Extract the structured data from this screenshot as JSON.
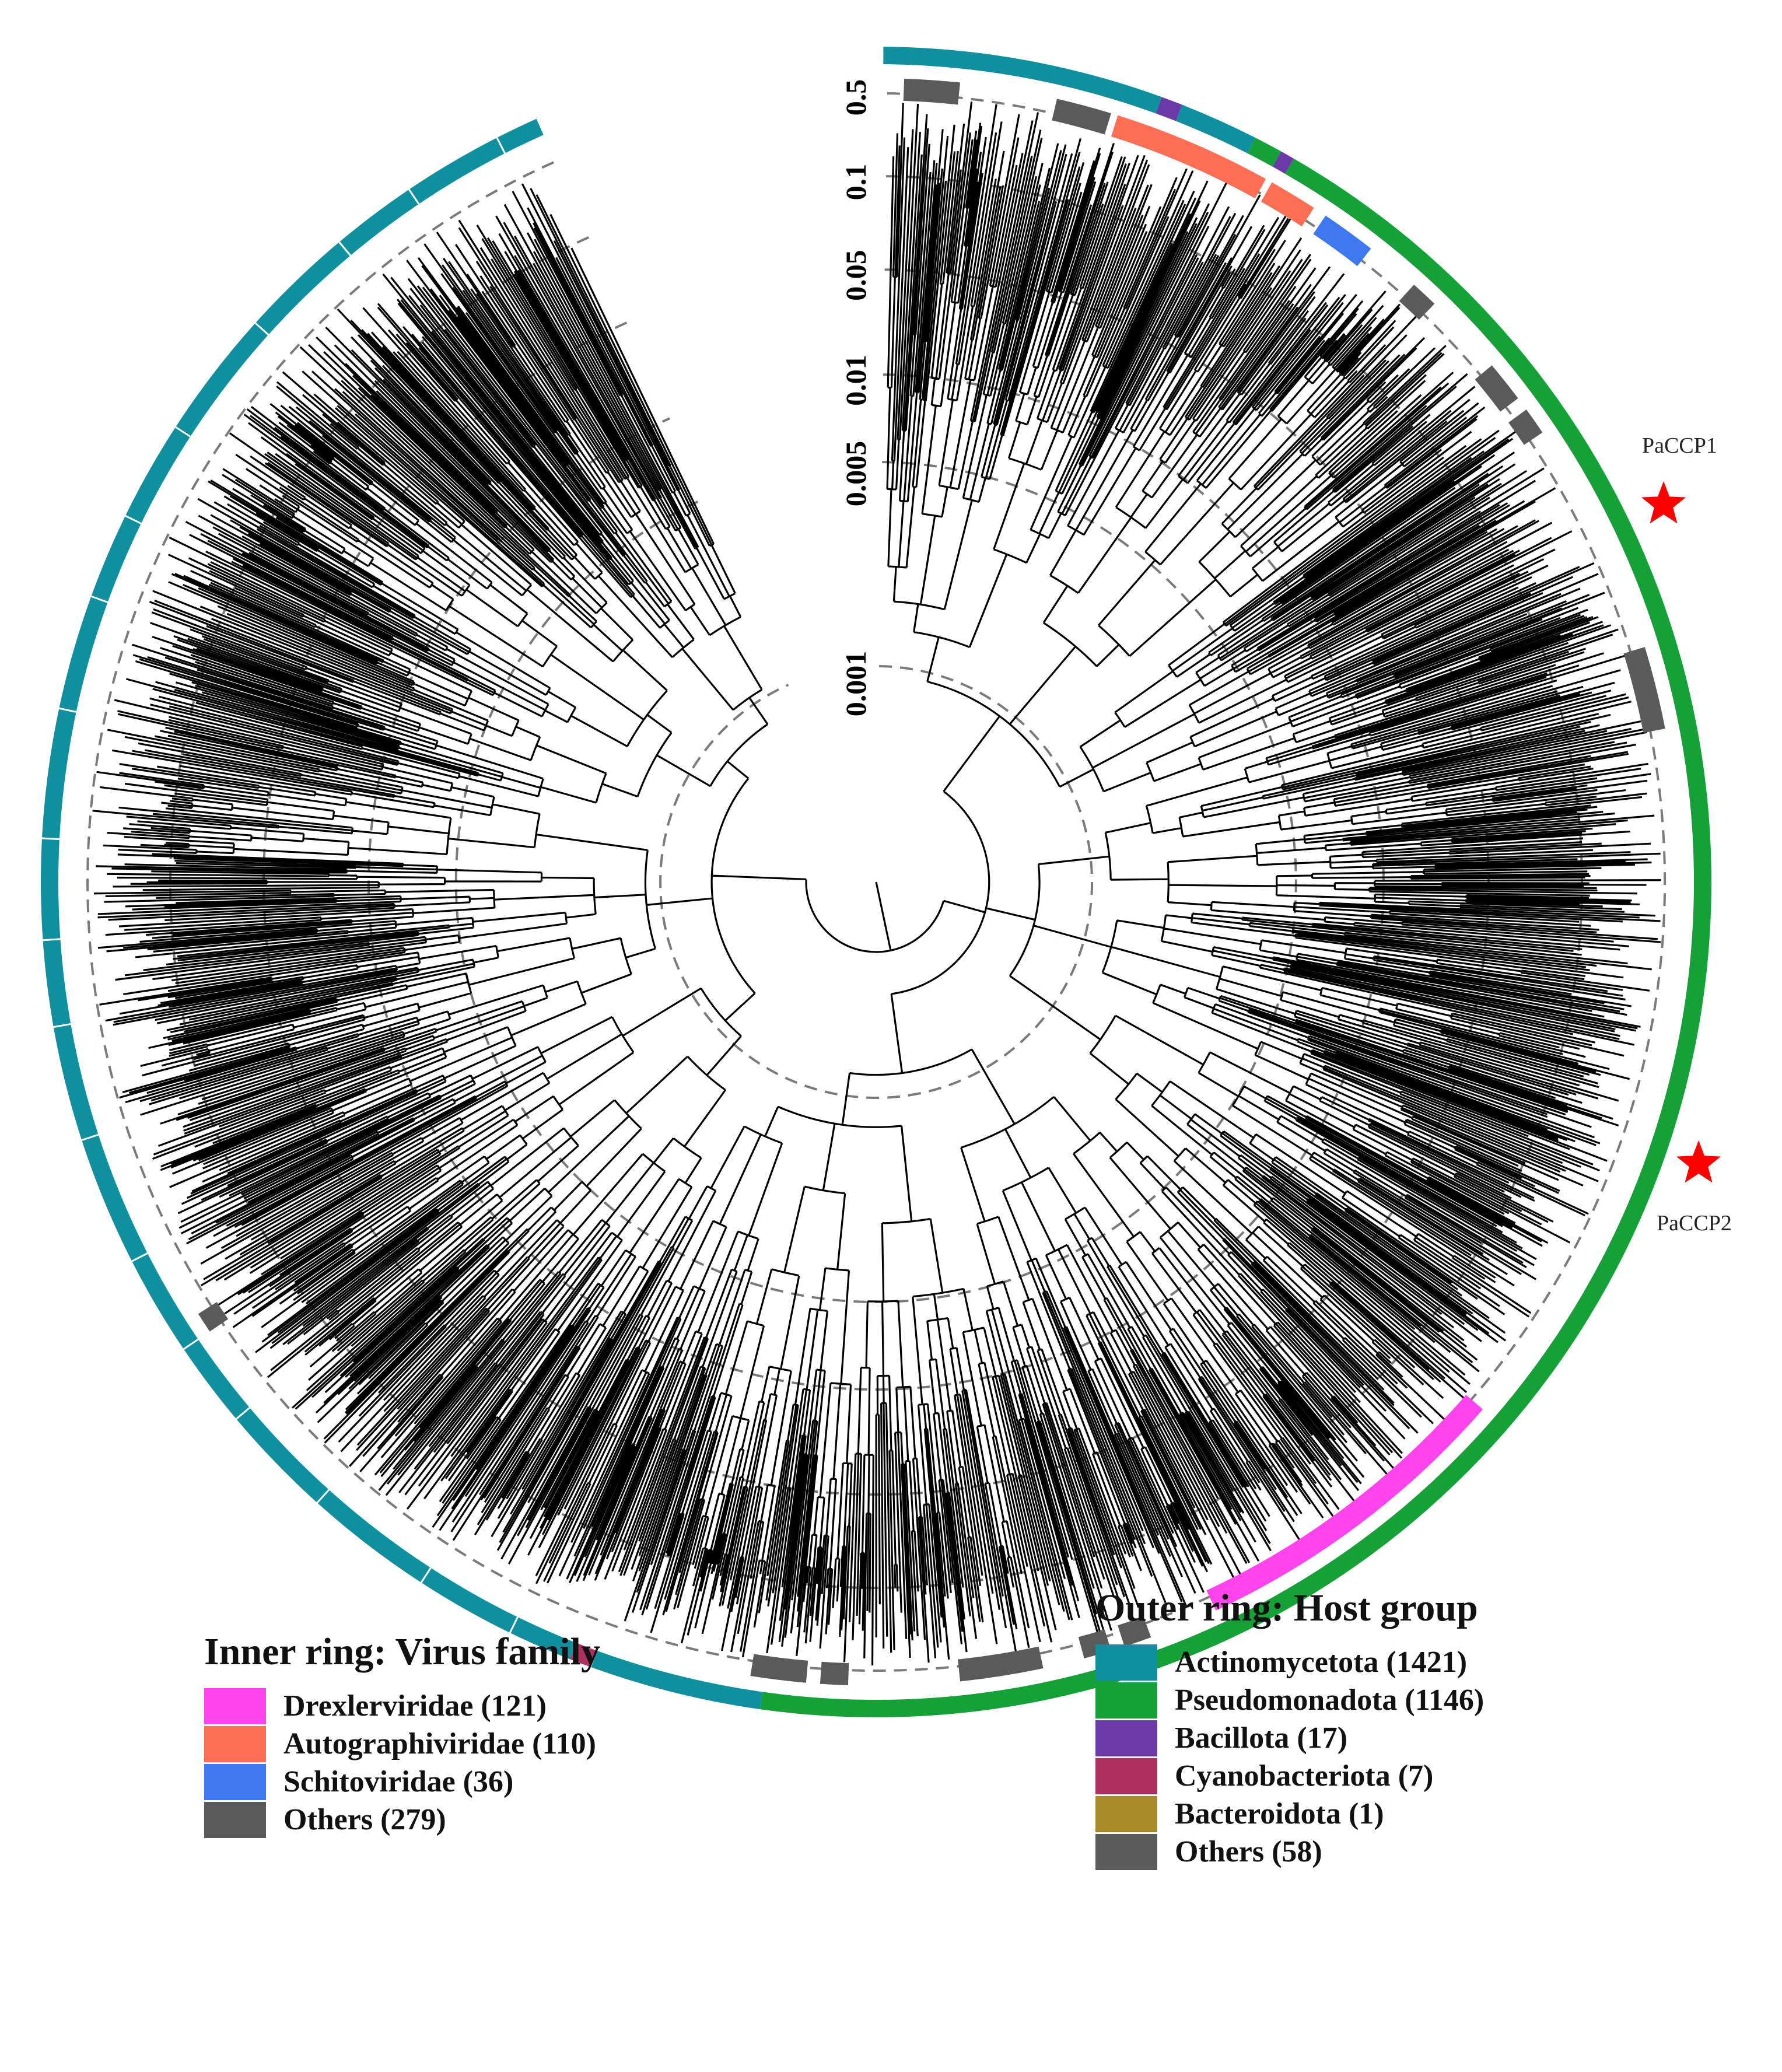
{
  "scale": {
    "ticks": [
      "0.5",
      "0.1",
      "0.05",
      "0.01",
      "0.005",
      "0.001"
    ]
  },
  "annotations": {
    "star1_label": "PaCCP1",
    "star2_label": "PaCCP2",
    "star_color": "#ff0000"
  },
  "inner_legend": {
    "title": "Inner ring: Virus family",
    "items": [
      {
        "label": "Drexlerviridae (121)",
        "color": "#ff44ee"
      },
      {
        "label": "Autographiviridae (110)",
        "color": "#fe6e55"
      },
      {
        "label": "Schitoviridae (36)",
        "color": "#3d78f0"
      },
      {
        "label": "Others (279)",
        "color": "#5a5a5a"
      }
    ]
  },
  "outer_legend": {
    "title": "Outer ring: Host group",
    "items": [
      {
        "label": "Actinomycetota (1421)",
        "color": "#10909e"
      },
      {
        "label": "Pseudomonadota (1146)",
        "color": "#16a038"
      },
      {
        "label": "Bacillota (17)",
        "color": "#6a3aa8"
      },
      {
        "label": "Cyanobacteriota (7)",
        "color": "#b03060"
      },
      {
        "label": "Bacteroidota (1)",
        "color": "#a88a28"
      },
      {
        "label": "Others (58)",
        "color": "#5a5a5a"
      }
    ]
  }
}
